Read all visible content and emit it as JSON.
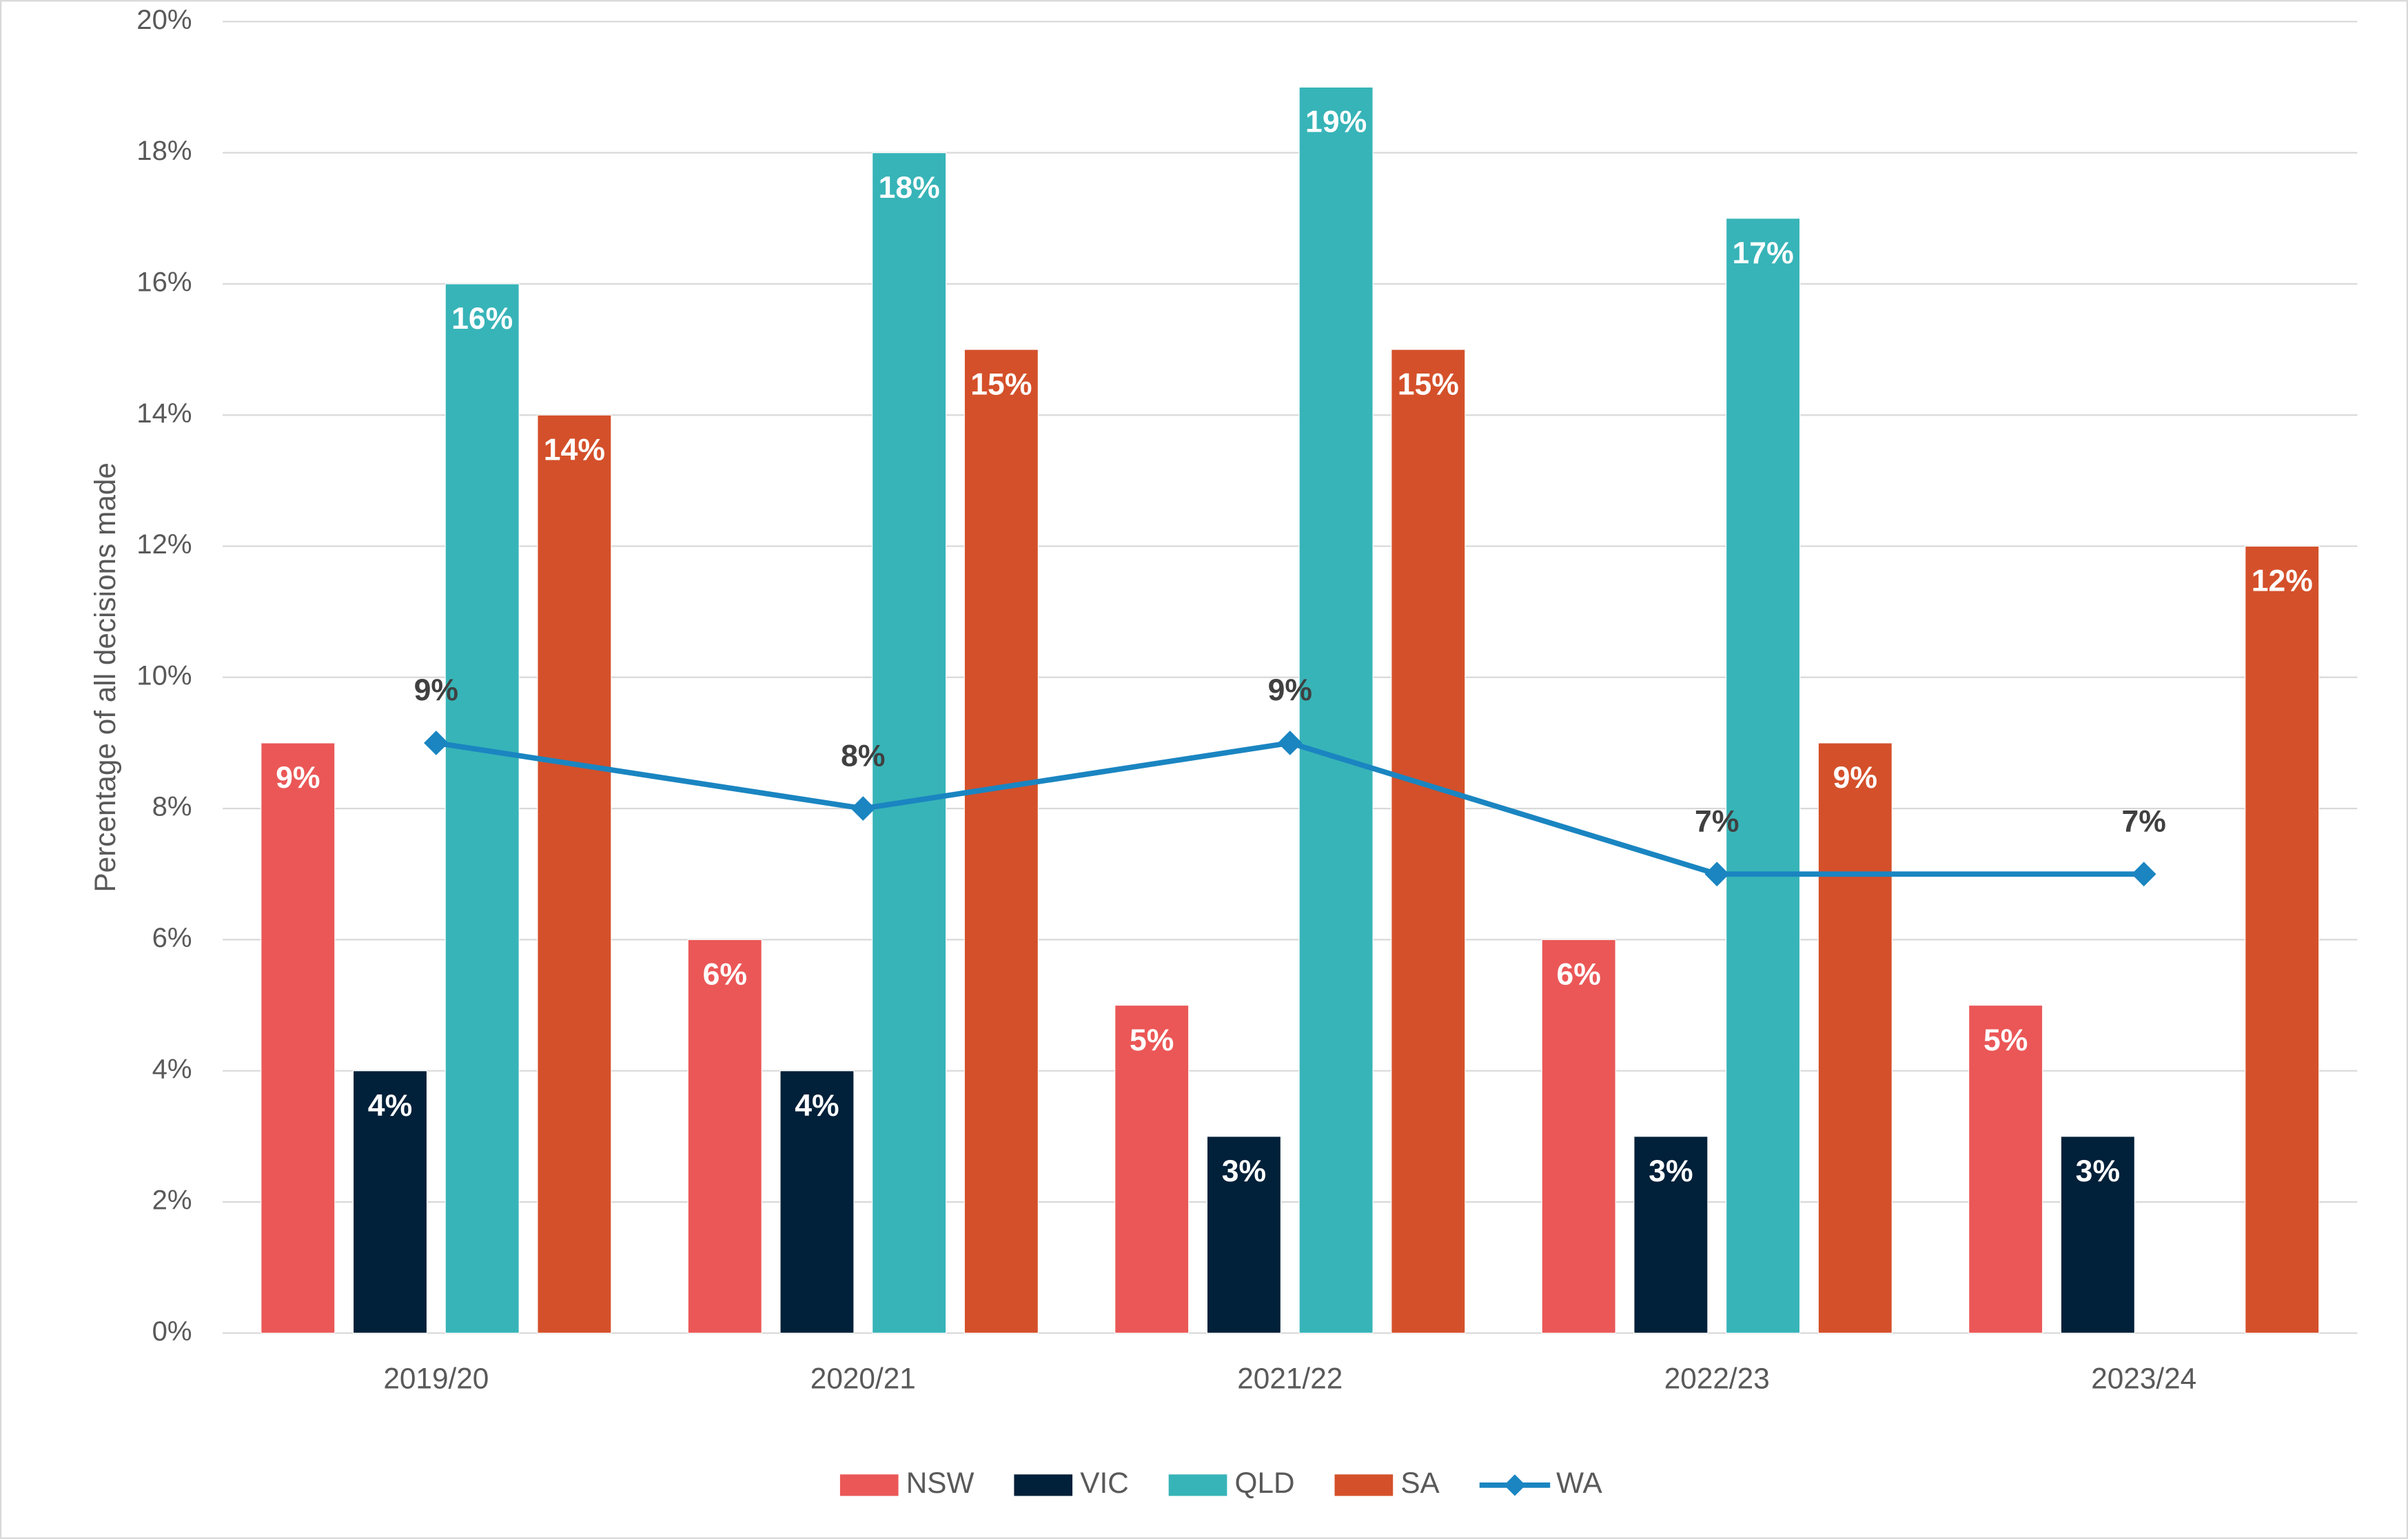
{
  "chart_data": {
    "type": "bar",
    "y_label": "Percentage of all decisions made",
    "categories": [
      "2019/20",
      "2020/21",
      "2021/22",
      "2022/23",
      "2023/24"
    ],
    "series": [
      {
        "name": "NSW",
        "color": "#eb5757",
        "values": [
          9,
          6,
          5,
          6,
          5
        ],
        "value_labels": [
          "9%",
          "6%",
          "5%",
          "6%",
          "5%"
        ]
      },
      {
        "name": "VIC",
        "color": "#012039",
        "values": [
          4,
          4,
          3,
          3,
          3
        ],
        "value_labels": [
          "4%",
          "4%",
          "3%",
          "3%",
          "3%"
        ]
      },
      {
        "name": "QLD",
        "color": "#37b4b8",
        "values": [
          16,
          18,
          19,
          17,
          null
        ],
        "value_labels": [
          "16%",
          "18%",
          "19%",
          "17%",
          null
        ]
      },
      {
        "name": "SA",
        "color": "#d4502a",
        "values": [
          14,
          15,
          15,
          9,
          12
        ],
        "value_labels": [
          "14%",
          "15%",
          "15%",
          "9%",
          "12%"
        ]
      },
      {
        "name": "WA",
        "type": "line",
        "color": "#1a85c1",
        "values": [
          9,
          8,
          9,
          7,
          7
        ],
        "value_labels": [
          "9%",
          "8%",
          "9%",
          "7%",
          "7%"
        ]
      }
    ],
    "ylim": [
      0,
      20
    ],
    "yticks": [
      {
        "value": 0,
        "label": "0%"
      },
      {
        "value": 2,
        "label": "2%"
      },
      {
        "value": 4,
        "label": "4%"
      },
      {
        "value": 6,
        "label": "6%"
      },
      {
        "value": 8,
        "label": "8%"
      },
      {
        "value": 10,
        "label": "10%"
      },
      {
        "value": 12,
        "label": "12%"
      },
      {
        "value": 14,
        "label": "14%"
      },
      {
        "value": 16,
        "label": "16%"
      },
      {
        "value": 18,
        "label": "18%"
      },
      {
        "value": 20,
        "label": "20%"
      }
    ],
    "grid": true,
    "legend": "bottom"
  }
}
